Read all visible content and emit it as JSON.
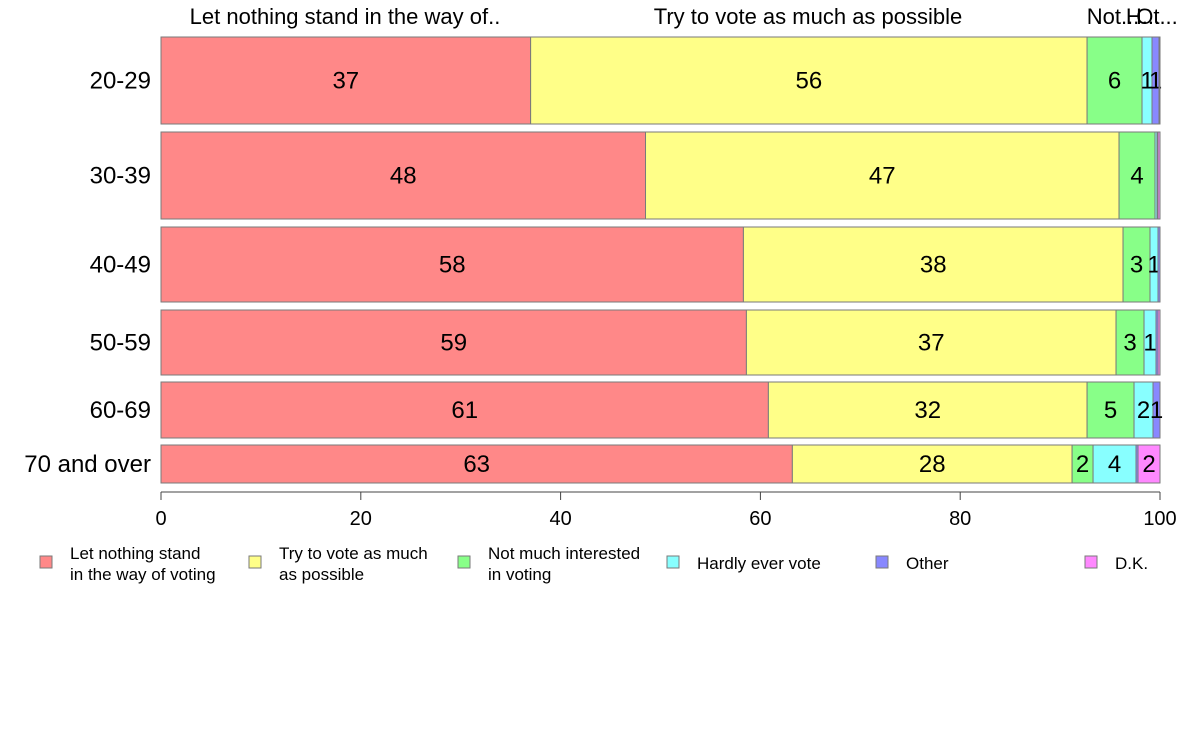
{
  "chart_data": {
    "type": "bar",
    "orientation": "horizontal",
    "stacked": true,
    "categories": [
      "20-29",
      "30-39",
      "40-49",
      "50-59",
      "60-69",
      "70 and over"
    ],
    "series": [
      {
        "name": "Let nothing stand in the way of voting",
        "legend_lines": [
          "Let nothing stand",
          "in the way of voting"
        ],
        "color": "#FF8888",
        "values": [
          37,
          48.5,
          58.3,
          58.6,
          60.8,
          63.2
        ]
      },
      {
        "name": "Try to vote as much as possible",
        "legend_lines": [
          "Try to vote as much",
          "as possible"
        ],
        "color": "#FFFF88",
        "values": [
          55.7,
          47.4,
          38,
          37,
          31.9,
          28
        ]
      },
      {
        "name": "Not much interested in voting",
        "legend_lines": [
          "Not much interested",
          "in voting"
        ],
        "color": "#88FF88",
        "values": [
          5.5,
          3.6,
          2.7,
          2.8,
          4.7,
          2.1
        ]
      },
      {
        "name": "Hardly ever vote",
        "legend_lines": [
          "Hardly ever vote"
        ],
        "color": "#88FFFF",
        "values": [
          1.0,
          0.2,
          0.8,
          1.2,
          1.9,
          4.3
        ]
      },
      {
        "name": "Other",
        "legend_lines": [
          "Other"
        ],
        "color": "#8888FF",
        "values": [
          0.7,
          0.1,
          0.2,
          0.2,
          0.7,
          0.2
        ]
      },
      {
        "name": "D.K.",
        "legend_lines": [
          "D.K."
        ],
        "color": "#FF88FF",
        "values": [
          0.1,
          0.2,
          0,
          0.2,
          0,
          2.2
        ]
      }
    ],
    "segment_labels": [
      [
        "37",
        "56",
        "6",
        "1",
        "1",
        ""
      ],
      [
        "48",
        "47",
        "4",
        "",
        "",
        ""
      ],
      [
        "58",
        "38",
        "3",
        "1",
        "",
        ""
      ],
      [
        "59",
        "37",
        "3",
        "1",
        "",
        ""
      ],
      [
        "61",
        "32",
        "5",
        "2",
        "1",
        ""
      ],
      [
        "63",
        "28",
        "2",
        "4",
        "",
        "2"
      ]
    ],
    "top_labels": [
      "Let nothing stand in the way of..",
      "Try to vote as much as possible",
      "Not...",
      "H...",
      "Ot..."
    ],
    "xlim": [
      0,
      100
    ],
    "xticks": [
      0,
      20,
      40,
      60,
      80,
      100
    ],
    "xlabel": "",
    "ylabel": "",
    "title": "",
    "legend_position": "bottom",
    "grid": false
  }
}
